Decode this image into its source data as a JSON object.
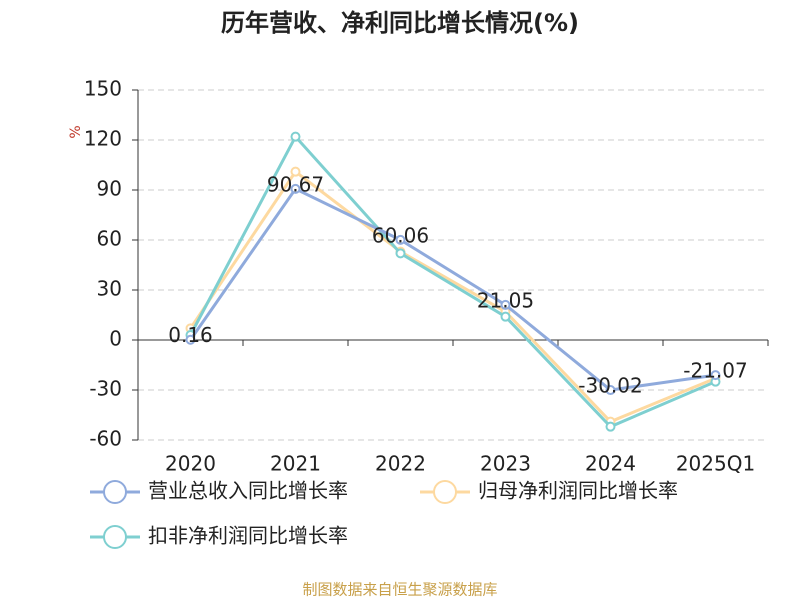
{
  "chart_data": {
    "type": "line",
    "title": "历年营收、净利同比增长情况(%)",
    "y_label": "%",
    "source": "制图数据来自恒生聚源数据库",
    "categories": [
      "2020",
      "2021",
      "2022",
      "2023",
      "2024",
      "2025Q1"
    ],
    "series": [
      {
        "name": "营业总收入同比增长率",
        "color": "#8faadc",
        "values": [
          0.16,
          90.67,
          60.06,
          21.05,
          -30.02,
          -21.07
        ],
        "show_labels": true
      },
      {
        "name": "归母净利润同比增长率",
        "color": "#fdd9a0",
        "values": [
          7,
          101,
          53,
          17,
          -49,
          -23
        ]
      },
      {
        "name": "扣非净利润同比增长率",
        "color": "#7ecfd0",
        "values": [
          3,
          122,
          52,
          14,
          -52,
          -25
        ]
      }
    ],
    "ylim": [
      -60,
      150
    ],
    "yticks": [
      -60,
      -30,
      0,
      30,
      60,
      90,
      120,
      150
    ],
    "grid": true
  }
}
